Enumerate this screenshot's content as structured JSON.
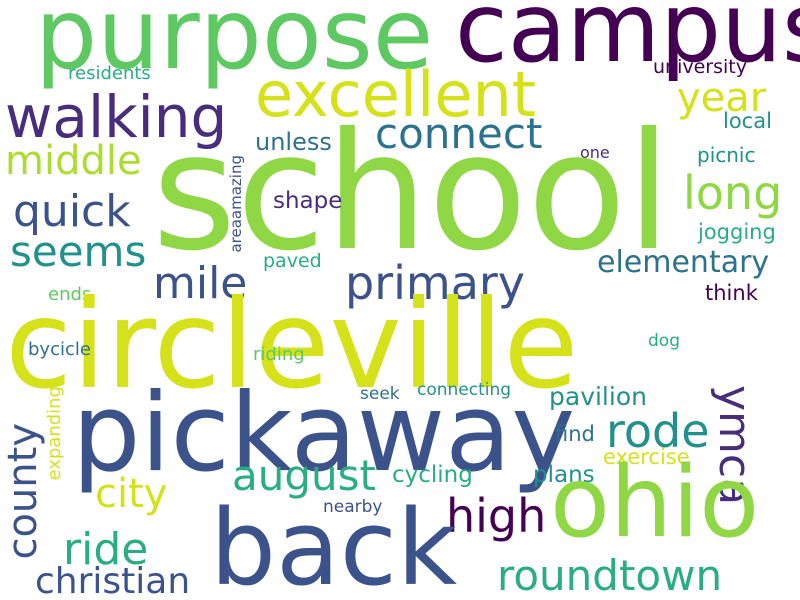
{
  "words": {
    "school": "school",
    "circleville": "circleville",
    "pickaway": "pickaway",
    "back": "back",
    "ohio": "ohio",
    "purpose": "purpose",
    "campus": "campus",
    "excellent": "excellent",
    "walking": "walking",
    "connect": "connect",
    "primary": "primary",
    "roundtown": "roundtown",
    "august": "august",
    "county": "county",
    "ymca": "ymca",
    "high": "high",
    "rode": "rode",
    "christian": "christian",
    "ride": "ride",
    "city": "city",
    "mile": "mile",
    "quick": "quick",
    "seems": "seems",
    "middle": "middle",
    "year": "year",
    "long": "long",
    "elementary": "elementary",
    "residents": "residents",
    "university": "university",
    "local": "local",
    "unless": "unless",
    "one": "one",
    "picnic": "picnic",
    "shape": "shape",
    "jogging": "jogging",
    "areaamazing": "areaamazing",
    "paved": "paved",
    "ends": "ends",
    "think": "think",
    "bycicle": "bycicle",
    "riding": "riding",
    "dog": "dog",
    "seek": "seek",
    "connecting": "connecting",
    "pavilion": "pavilion",
    "expanding": "expanding",
    "find": "find",
    "exercise": "exercise",
    "cycling": "cycling",
    "plans": "plans",
    "nearby": "nearby"
  }
}
